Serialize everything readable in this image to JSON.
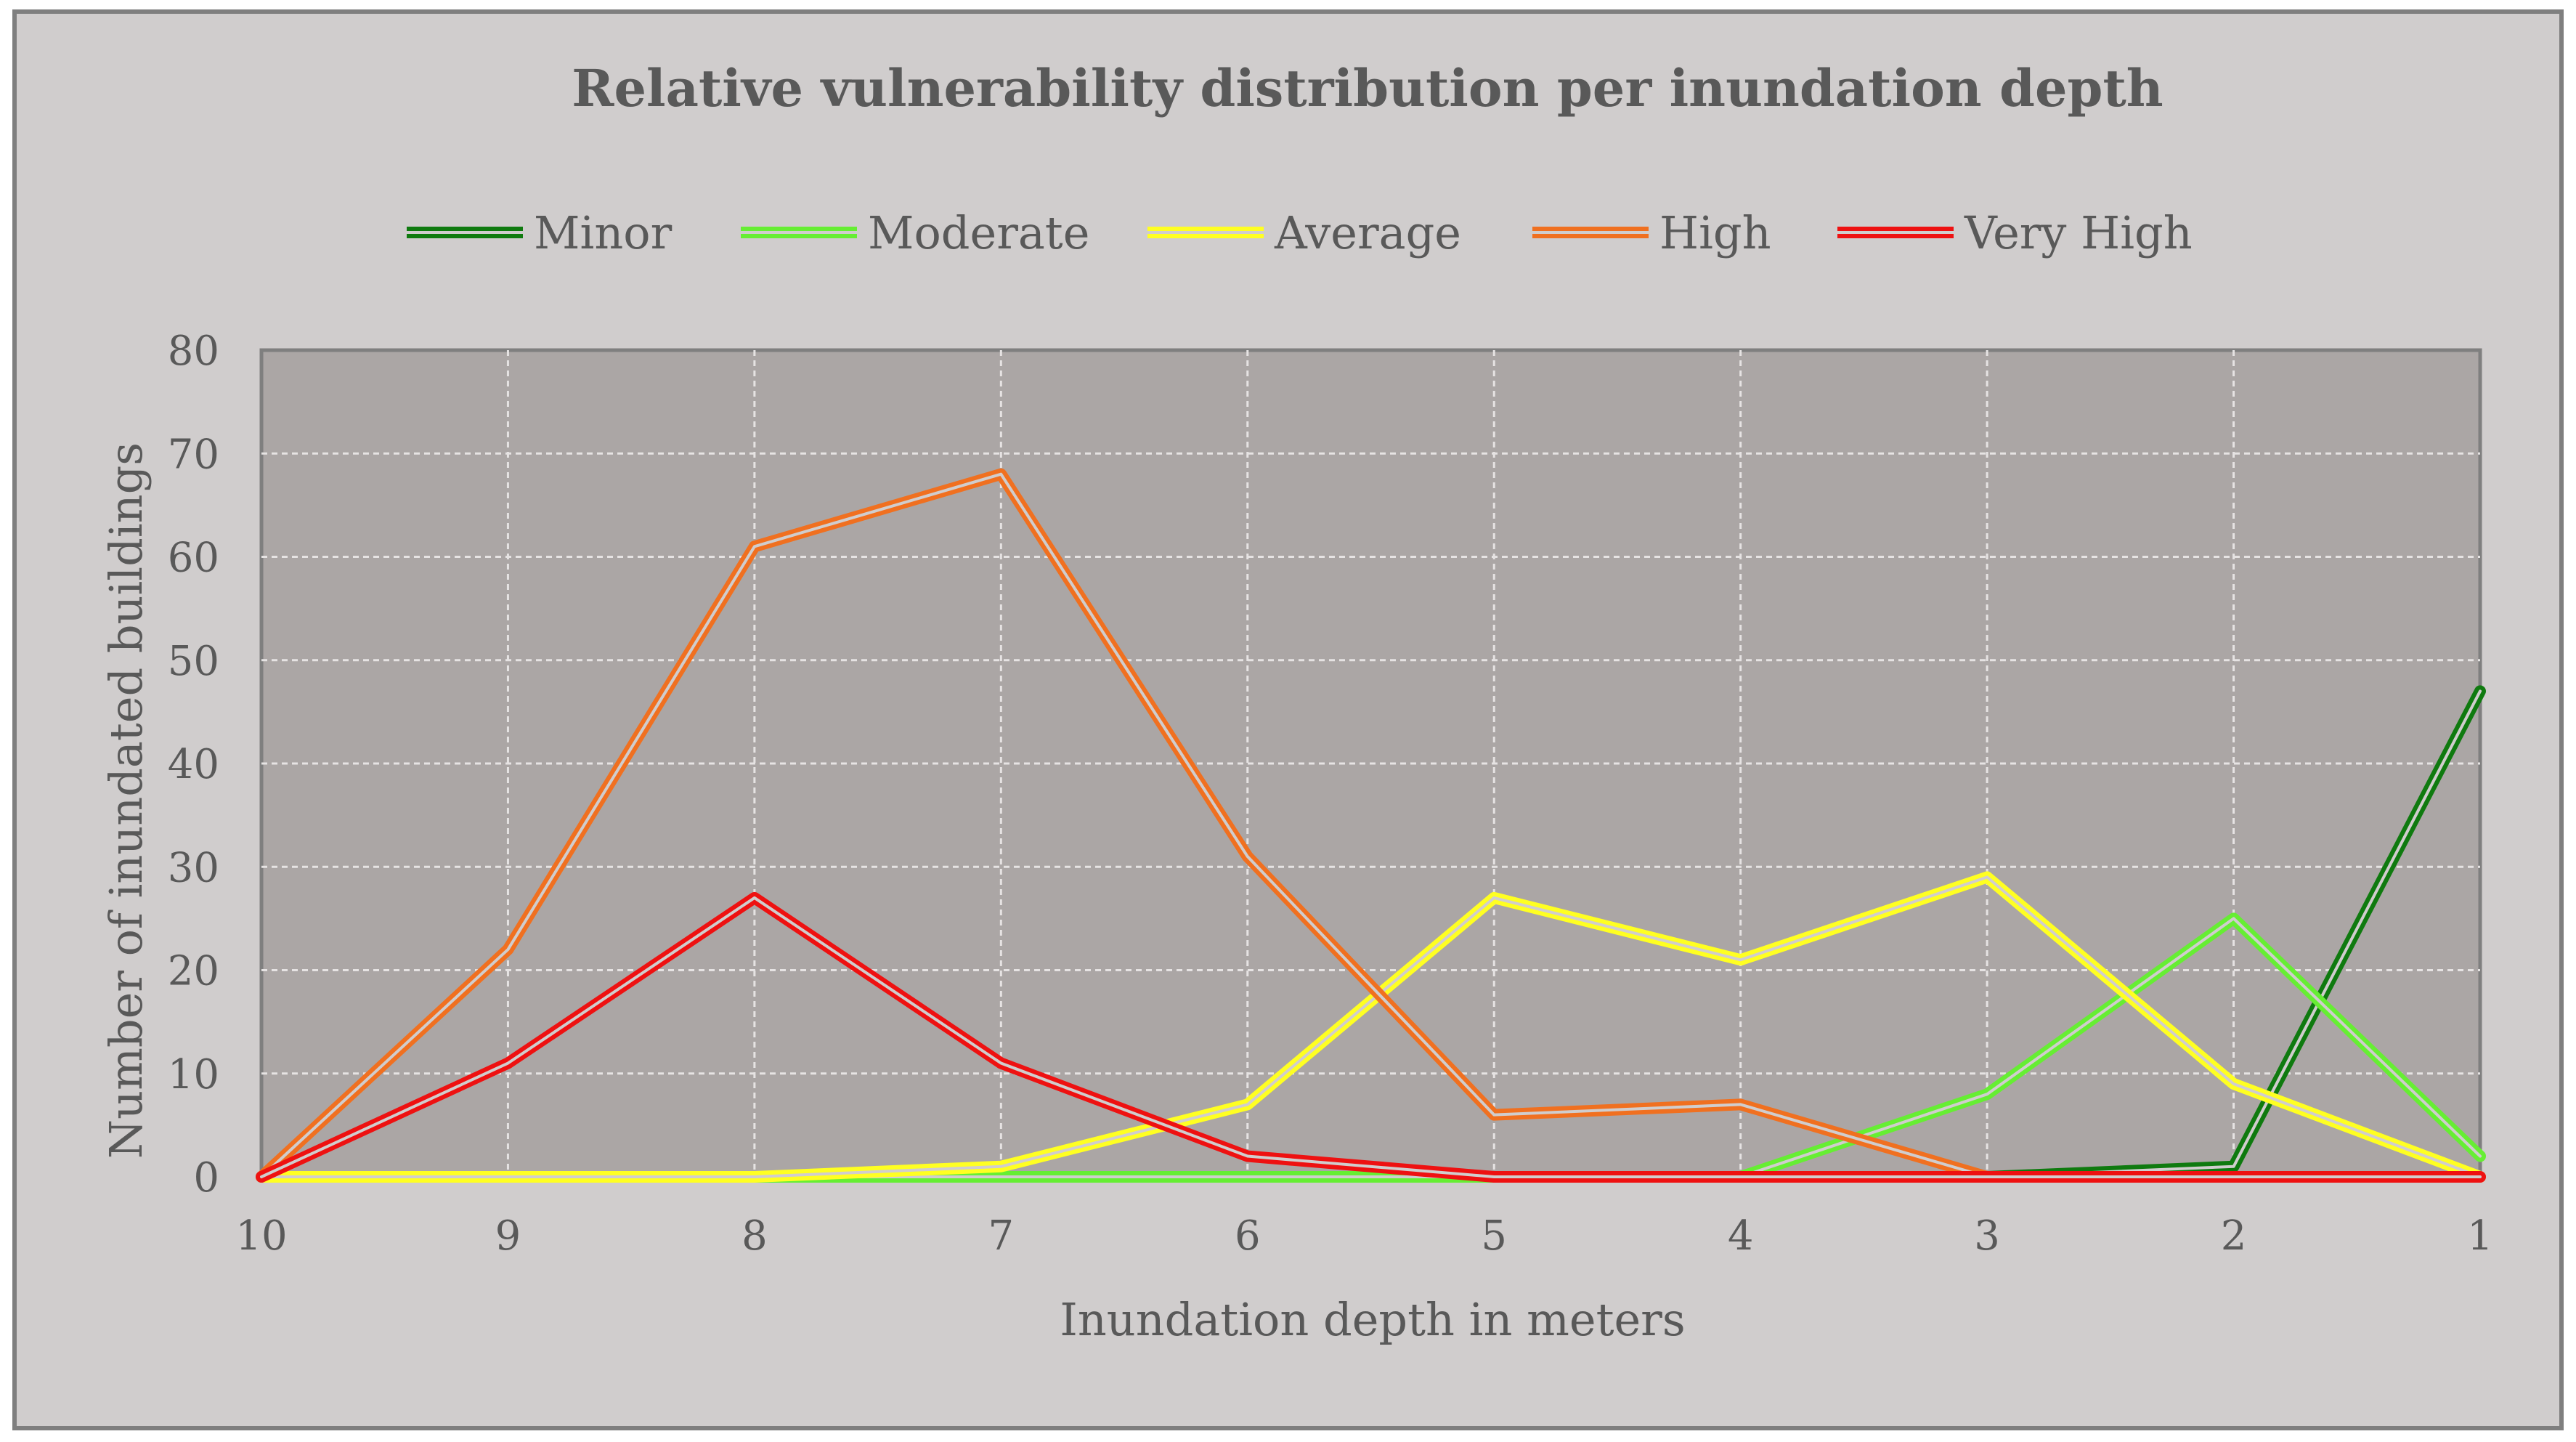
{
  "chart_data": {
    "type": "line",
    "title": "Relative vulnerability distribution per inundation depth",
    "xlabel": "Inundation depth in meters",
    "ylabel": "Number of inundated buildings",
    "categories": [
      "10",
      "9",
      "8",
      "7",
      "6",
      "5",
      "4",
      "3",
      "2",
      "1"
    ],
    "ylim": [
      0,
      80
    ],
    "yticks": [
      0,
      10,
      20,
      30,
      40,
      50,
      60,
      70,
      80
    ],
    "grid": true,
    "legend": "top-center",
    "series": [
      {
        "name": "Minor",
        "color": "#0f7a0f",
        "values": [
          0,
          0,
          0,
          0,
          0,
          0,
          0,
          0,
          1,
          47
        ]
      },
      {
        "name": "Moderate",
        "color": "#66ee33",
        "values": [
          0,
          0,
          0,
          0,
          0,
          0,
          0,
          8,
          25,
          2
        ]
      },
      {
        "name": "Average",
        "color": "#ffff22",
        "values": [
          0,
          0,
          0,
          1,
          7,
          27,
          21,
          29,
          9,
          0
        ]
      },
      {
        "name": "High",
        "color": "#f07020",
        "values": [
          0,
          22,
          61,
          68,
          31,
          6,
          7,
          0,
          0,
          0
        ]
      },
      {
        "name": "Very High",
        "color": "#ee1111",
        "values": [
          0,
          11,
          27,
          11,
          2,
          0,
          0,
          0,
          0,
          0
        ]
      }
    ]
  }
}
